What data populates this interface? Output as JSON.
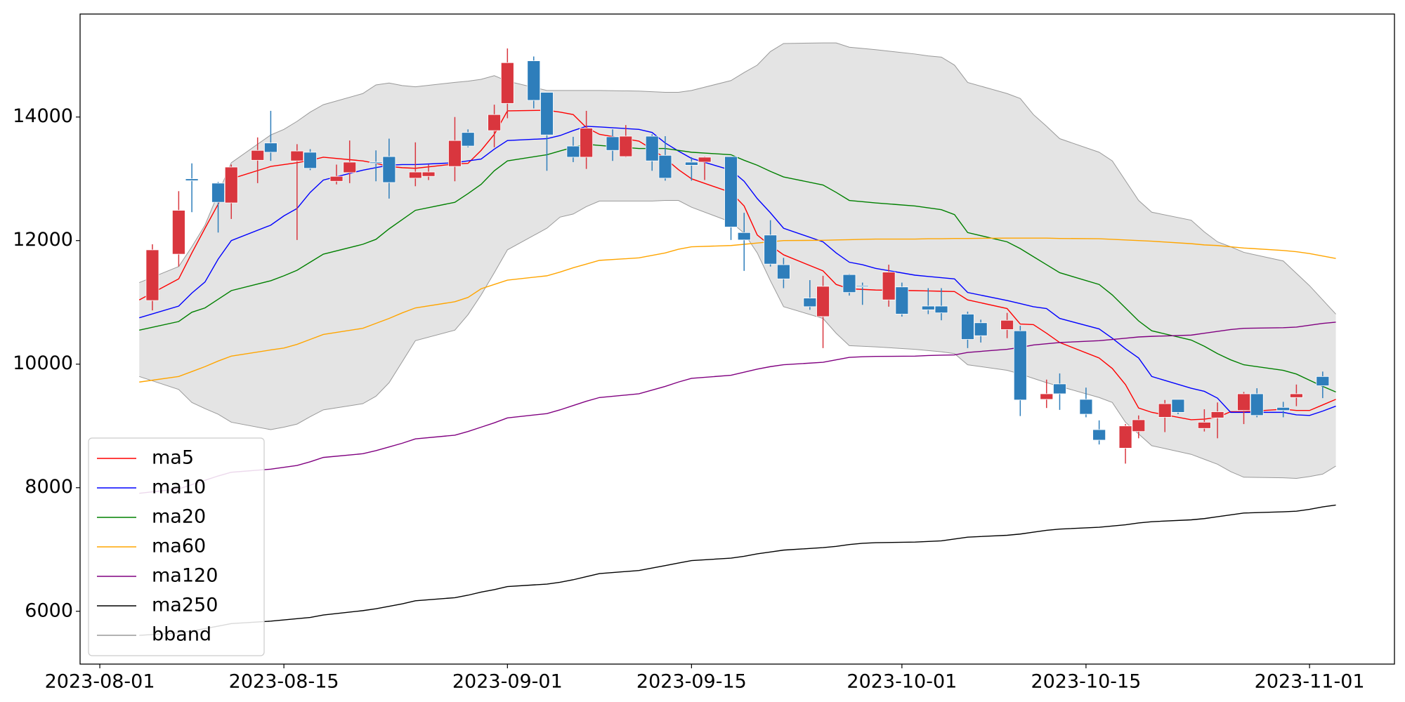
{
  "chart_data": {
    "type": "candlestick",
    "x": [
      "2023-08-04",
      "2023-08-07",
      "2023-08-08",
      "2023-08-09",
      "2023-08-10",
      "2023-08-11",
      "2023-08-14",
      "2023-08-15",
      "2023-08-16",
      "2023-08-17",
      "2023-08-18",
      "2023-08-21",
      "2023-08-22",
      "2023-08-23",
      "2023-08-24",
      "2023-08-25",
      "2023-08-28",
      "2023-08-29",
      "2023-08-30",
      "2023-08-31",
      "2023-09-01",
      "2023-09-04",
      "2023-09-05",
      "2023-09-06",
      "2023-09-07",
      "2023-09-08",
      "2023-09-11",
      "2023-09-12",
      "2023-09-13",
      "2023-09-14",
      "2023-09-15",
      "2023-09-18",
      "2023-09-19",
      "2023-09-20",
      "2023-09-21",
      "2023-09-22",
      "2023-09-25",
      "2023-09-26",
      "2023-09-27",
      "2023-09-28",
      "2023-09-29",
      "2023-10-02",
      "2023-10-03",
      "2023-10-04",
      "2023-10-05",
      "2023-10-06",
      "2023-10-09",
      "2023-10-10",
      "2023-10-11",
      "2023-10-12",
      "2023-10-13",
      "2023-10-16",
      "2023-10-17",
      "2023-10-18",
      "2023-10-19",
      "2023-10-20",
      "2023-10-23",
      "2023-10-24",
      "2023-10-25",
      "2023-10-26",
      "2023-10-27",
      "2023-10-30",
      "2023-10-31",
      "2023-11-01",
      "2023-11-02",
      "2023-11-03"
    ],
    "band": {
      "name": "bband",
      "color": "#999999",
      "fill": "#e4e4e4",
      "upper": [
        11320,
        11580,
        11900,
        12250,
        12760,
        13260,
        13710,
        13800,
        13930,
        14080,
        14200,
        14380,
        14520,
        14550,
        14510,
        14490,
        14560,
        14580,
        14610,
        14670,
        14580,
        14430,
        14430,
        14430,
        14430,
        14430,
        14420,
        14410,
        14400,
        14400,
        14430,
        14590,
        14720,
        14840,
        15060,
        15190,
        15200,
        15200,
        15130,
        15110,
        15090,
        15020,
        14990,
        14970,
        14840,
        14560,
        14380,
        14300,
        14040,
        13850,
        13650,
        13430,
        13290,
        12970,
        12650,
        12460,
        12330,
        12140,
        11980,
        11900,
        11810,
        11670,
        11470,
        11270,
        11040,
        10810
      ],
      "lower": [
        9800,
        9590,
        9380,
        9280,
        9190,
        9060,
        8940,
        8980,
        9030,
        9150,
        9260,
        9360,
        9480,
        9700,
        10040,
        10380,
        10550,
        10800,
        11120,
        11480,
        11850,
        12200,
        12380,
        12430,
        12550,
        12640,
        12640,
        12640,
        12650,
        12650,
        12540,
        12300,
        12120,
        11800,
        11350,
        10930,
        10740,
        10500,
        10300,
        10290,
        10280,
        10240,
        10220,
        10200,
        10170,
        9990,
        9900,
        9840,
        9770,
        9700,
        9640,
        9460,
        9380,
        9060,
        8870,
        8680,
        8540,
        8460,
        8380,
        8260,
        8170,
        8160,
        8150,
        8180,
        8220,
        8350
      ]
    },
    "series": [
      {
        "name": "ma5",
        "color": "#ff0000",
        "values": [
          11040,
          11380,
          11800,
          12200,
          12590,
          13000,
          13200,
          13230,
          13260,
          13300,
          13350,
          13290,
          13250,
          13200,
          13180,
          13170,
          13240,
          13250,
          13460,
          13720,
          14100,
          14110,
          14080,
          14040,
          13830,
          13720,
          13610,
          13480,
          13330,
          13150,
          13000,
          12780,
          12560,
          12090,
          11920,
          11770,
          11510,
          11290,
          11220,
          11210,
          11200,
          11190,
          11185,
          11180,
          11175,
          11040,
          10900,
          10650,
          10640,
          10500,
          10350,
          10100,
          9930,
          9670,
          9290,
          9220,
          9100,
          9110,
          9140,
          9230,
          9230,
          9270,
          9250,
          9250,
          9340,
          9430
        ]
      },
      {
        "name": "ma10",
        "color": "#0000ff",
        "values": [
          10750,
          10940,
          11150,
          11330,
          11700,
          12000,
          12250,
          12400,
          12520,
          12780,
          12980,
          13140,
          13180,
          13220,
          13230,
          13230,
          13260,
          13290,
          13320,
          13480,
          13620,
          13650,
          13700,
          13780,
          13850,
          13840,
          13800,
          13750,
          13580,
          13450,
          13330,
          13140,
          12960,
          12680,
          12450,
          12200,
          11980,
          11800,
          11650,
          11610,
          11550,
          11440,
          11420,
          11400,
          11380,
          11160,
          11030,
          10980,
          10930,
          10900,
          10740,
          10570,
          10420,
          10250,
          10100,
          9800,
          9610,
          9560,
          9450,
          9220,
          9220,
          9220,
          9180,
          9170,
          9240,
          9320
        ]
      },
      {
        "name": "ma20",
        "color": "#008000",
        "values": [
          10550,
          10690,
          10840,
          10910,
          11050,
          11190,
          11350,
          11430,
          11520,
          11650,
          11780,
          11940,
          12020,
          12190,
          12340,
          12490,
          12620,
          12760,
          12910,
          13130,
          13290,
          13390,
          13450,
          13510,
          13560,
          13540,
          13490,
          13490,
          13490,
          13460,
          13430,
          13390,
          13300,
          13220,
          13120,
          13030,
          12900,
          12780,
          12650,
          12630,
          12610,
          12560,
          12530,
          12500,
          12420,
          12130,
          11980,
          11870,
          11740,
          11610,
          11480,
          11290,
          11120,
          10910,
          10700,
          10540,
          10390,
          10290,
          10170,
          10070,
          9990,
          9900,
          9840,
          9740,
          9640,
          9550
        ]
      },
      {
        "name": "ma60",
        "color": "#ffa500",
        "values": [
          9710,
          9800,
          9880,
          9960,
          10050,
          10130,
          10230,
          10260,
          10320,
          10400,
          10480,
          10580,
          10660,
          10740,
          10830,
          10910,
          11010,
          11080,
          11220,
          11290,
          11360,
          11430,
          11490,
          11560,
          11620,
          11680,
          11720,
          11760,
          11800,
          11860,
          11900,
          11920,
          11940,
          11960,
          11980,
          12000,
          12005,
          12010,
          12015,
          12020,
          12025,
          12025,
          12030,
          12030,
          12035,
          12035,
          12040,
          12040,
          12040,
          12040,
          12035,
          12030,
          12020,
          12010,
          12000,
          11990,
          11950,
          11930,
          11920,
          11900,
          11880,
          11840,
          11820,
          11790,
          11750,
          11710
        ]
      },
      {
        "name": "ma120",
        "color": "#800080",
        "values": [
          7910,
          7980,
          8050,
          8120,
          8190,
          8250,
          8300,
          8330,
          8360,
          8420,
          8490,
          8550,
          8600,
          8660,
          8720,
          8790,
          8850,
          8910,
          8980,
          9050,
          9130,
          9200,
          9260,
          9330,
          9400,
          9460,
          9520,
          9580,
          9640,
          9710,
          9770,
          9820,
          9870,
          9920,
          9960,
          9990,
          10030,
          10070,
          10110,
          10120,
          10125,
          10130,
          10140,
          10145,
          10150,
          10190,
          10240,
          10270,
          10310,
          10330,
          10350,
          10380,
          10400,
          10420,
          10440,
          10450,
          10470,
          10500,
          10530,
          10560,
          10580,
          10590,
          10600,
          10630,
          10660,
          10680
        ]
      },
      {
        "name": "ma250",
        "color": "#000000",
        "values": [
          5610,
          5650,
          5680,
          5720,
          5760,
          5800,
          5840,
          5860,
          5880,
          5900,
          5940,
          6010,
          6040,
          6080,
          6120,
          6170,
          6220,
          6260,
          6310,
          6350,
          6400,
          6440,
          6470,
          6510,
          6560,
          6610,
          6660,
          6700,
          6740,
          6780,
          6820,
          6860,
          6890,
          6930,
          6960,
          6990,
          7030,
          7050,
          7080,
          7100,
          7110,
          7120,
          7130,
          7140,
          7170,
          7200,
          7230,
          7250,
          7280,
          7310,
          7330,
          7360,
          7380,
          7400,
          7430,
          7450,
          7480,
          7500,
          7530,
          7560,
          7590,
          7610,
          7620,
          7650,
          7690,
          7720
        ]
      }
    ],
    "candles": {
      "up_color": "#d9363e",
      "down_color": "#2e7ebb",
      "x": [
        "2023-08-05",
        "2023-08-07",
        "2023-08-08",
        "2023-08-10",
        "2023-08-11",
        "2023-08-13",
        "2023-08-14",
        "2023-08-16",
        "2023-08-17",
        "2023-08-19",
        "2023-08-20",
        "2023-08-22",
        "2023-08-23",
        "2023-08-25",
        "2023-08-26",
        "2023-08-28",
        "2023-08-29",
        "2023-08-31",
        "2023-09-01",
        "2023-09-03",
        "2023-09-04",
        "2023-09-06",
        "2023-09-07",
        "2023-09-09",
        "2023-09-10",
        "2023-09-12",
        "2023-09-13",
        "2023-09-15",
        "2023-09-16",
        "2023-09-18",
        "2023-09-19",
        "2023-09-21",
        "2023-09-22",
        "2023-09-24",
        "2023-09-25",
        "2023-09-27",
        "2023-09-28",
        "2023-09-30",
        "2023-10-01",
        "2023-10-03",
        "2023-10-04",
        "2023-10-06",
        "2023-10-07",
        "2023-10-09",
        "2023-10-10",
        "2023-10-12",
        "2023-10-13",
        "2023-10-15",
        "2023-10-16",
        "2023-10-18",
        "2023-10-19",
        "2023-10-21",
        "2023-10-22",
        "2023-10-24",
        "2023-10-25",
        "2023-10-27",
        "2023-10-28",
        "2023-10-30",
        "2023-10-31",
        "2023-11-02"
      ],
      "open": [
        11030,
        11780,
        13000,
        12930,
        12610,
        13300,
        13580,
        13290,
        13430,
        12960,
        13100,
        13270,
        13360,
        13010,
        13040,
        13200,
        13750,
        13780,
        14220,
        14910,
        14400,
        13530,
        13350,
        13680,
        13360,
        13690,
        13380,
        13270,
        13270,
        13360,
        12130,
        12090,
        11610,
        11070,
        10770,
        11450,
        11270,
        11040,
        11250,
        10940,
        10940,
        10810,
        10670,
        10560,
        10540,
        9430,
        9680,
        9430,
        8940,
        8640,
        8910,
        9140,
        9430,
        8960,
        9130,
        9250,
        9520,
        9300,
        9460,
        9800
      ],
      "high": [
        11940,
        12800,
        13250,
        12950,
        13230,
        13670,
        14100,
        13560,
        13480,
        13230,
        13620,
        13460,
        13650,
        13590,
        13230,
        14000,
        13800,
        14200,
        15110,
        14980,
        14400,
        13680,
        14100,
        13800,
        13870,
        13720,
        13690,
        13350,
        13360,
        13360,
        12450,
        12330,
        11720,
        11360,
        11430,
        11460,
        11320,
        11610,
        11320,
        11230,
        11230,
        10850,
        10720,
        10830,
        10620,
        9750,
        9850,
        9620,
        9090,
        9030,
        9170,
        9420,
        9430,
        9270,
        9380,
        9550,
        9610,
        9390,
        9670,
        9880
      ],
      "low": [
        10870,
        11580,
        12460,
        12130,
        12350,
        12930,
        13290,
        12010,
        13140,
        12910,
        12930,
        12960,
        12680,
        12880,
        12980,
        12960,
        13510,
        13510,
        13980,
        14140,
        13130,
        13270,
        13160,
        13290,
        13350,
        13130,
        12970,
        12970,
        12980,
        12010,
        11510,
        11580,
        11230,
        10880,
        10260,
        11110,
        10960,
        10930,
        10770,
        10810,
        10710,
        10260,
        10350,
        10420,
        9160,
        9290,
        9260,
        9140,
        8700,
        8390,
        8800,
        8900,
        9190,
        8910,
        8800,
        9030,
        9140,
        9140,
        9320,
        9450
      ],
      "close": [
        11850,
        12490,
        12970,
        12620,
        13190,
        13460,
        13430,
        13450,
        13170,
        13040,
        13270,
        13250,
        12940,
        13110,
        13110,
        13620,
        13530,
        14040,
        14880,
        14270,
        13710,
        13350,
        13820,
        13460,
        13690,
        13290,
        13010,
        13220,
        13350,
        12220,
        12010,
        11620,
        11380,
        10930,
        11260,
        11160,
        11260,
        11490,
        10810,
        10880,
        10830,
        10400,
        10460,
        10710,
        9420,
        9520,
        9520,
        9190,
        8770,
        9000,
        9100,
        9360,
        9220,
        9060,
        9230,
        9520,
        9170,
        9250,
        9520,
        9650
      ]
    },
    "xlim": [
      "2023-07-30T12:00",
      "2023-11-07T11:00"
    ],
    "xticks": [
      "2023-08-01",
      "2023-08-15",
      "2023-09-01",
      "2023-09-15",
      "2023-10-01",
      "2023-10-15",
      "2023-11-01"
    ],
    "ylim": [
      5145,
      15667
    ],
    "yticks": [
      6000,
      8000,
      10000,
      12000,
      14000
    ],
    "legend": "lower left"
  }
}
